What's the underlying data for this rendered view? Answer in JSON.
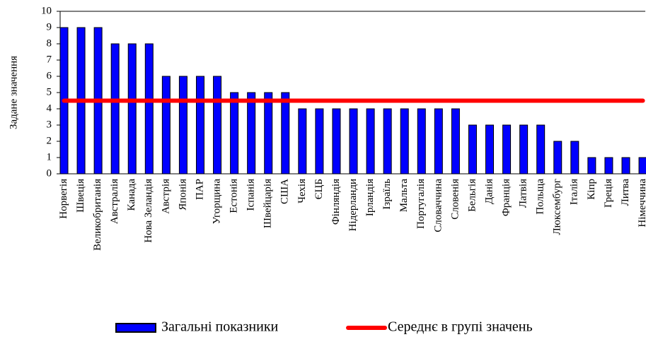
{
  "chart_data": {
    "type": "bar",
    "y_label": "Задане значення",
    "categories": [
      "Норвегія",
      "Швеція",
      "Великобританія",
      "Австралія",
      "Канада",
      "Нова Зеландія",
      "Австрія",
      "Японія",
      "ПАР",
      "Угорщина",
      "Естонія",
      "Іспанія",
      "Швейцарія",
      "США",
      "Чехія",
      "ЄЦБ",
      "Фінляндія",
      "Нідерланди",
      "Ірландія",
      "Ізраїль",
      "Мальта",
      "Португалія",
      "Словаччина",
      "Словенія",
      "Бельгія",
      "Данія",
      "Франція",
      "Латвія",
      "Польща",
      "Люксембург",
      "Італія",
      "Кіпр",
      "Греція",
      "Литва",
      "Німеччина"
    ],
    "series": [
      {
        "name": "Загальні показники",
        "type": "bar",
        "color": "#0000ff",
        "values": [
          9,
          9,
          9,
          8,
          8,
          8,
          6,
          6,
          6,
          6,
          5,
          5,
          5,
          5,
          4,
          4,
          4,
          4,
          4,
          4,
          4,
          4,
          4,
          4,
          3,
          3,
          3,
          3,
          3,
          2,
          2,
          1,
          1,
          1,
          1
        ]
      },
      {
        "name": "Середнє в групі значень",
        "type": "line",
        "color": "#ff0000",
        "values": [
          4.5,
          4.5,
          4.5,
          4.5,
          4.5,
          4.5,
          4.5,
          4.5,
          4.5,
          4.5,
          4.5,
          4.5,
          4.5,
          4.5,
          4.5,
          4.5,
          4.5,
          4.5,
          4.5,
          4.5,
          4.5,
          4.5,
          4.5,
          4.5,
          4.5,
          4.5,
          4.5,
          4.5,
          4.5,
          4.5,
          4.5,
          4.5,
          4.5,
          4.5,
          4.5
        ]
      }
    ],
    "ylim": [
      0,
      10
    ],
    "yticks": [
      0,
      1,
      2,
      3,
      4,
      5,
      6,
      7,
      8,
      9,
      10
    ],
    "legend": "bottom"
  }
}
